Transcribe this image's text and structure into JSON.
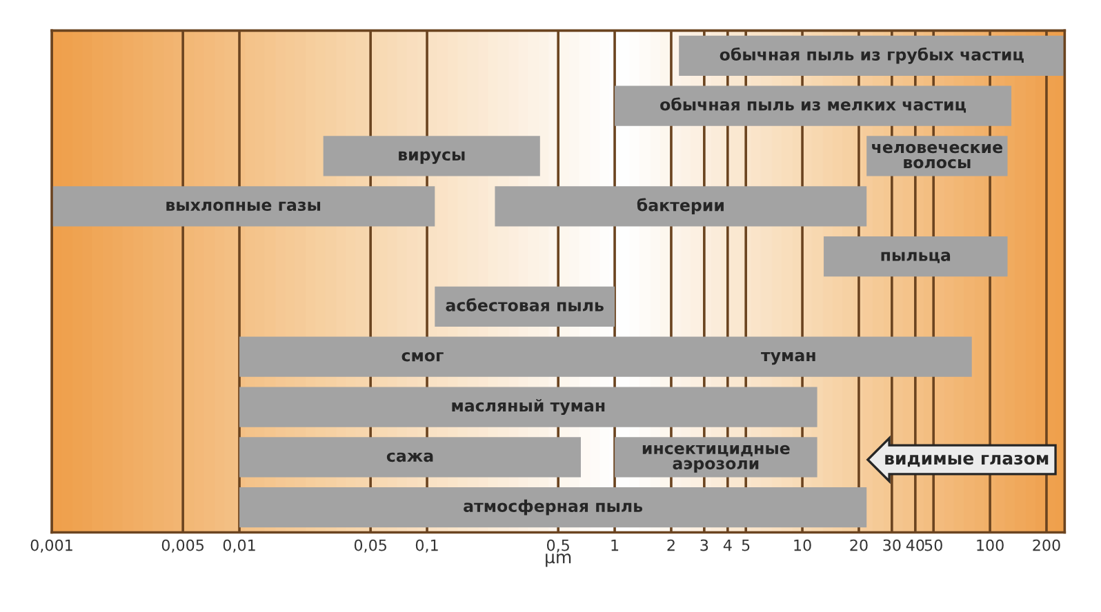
{
  "chart_data": {
    "type": "bar",
    "orientation": "horizontal",
    "xlabel": "μm",
    "log": "x",
    "grid": "x",
    "tick_labels": "x",
    "categories": [
      null,
      null,
      null,
      null,
      null,
      null,
      null,
      null,
      null,
      null
    ],
    "xlim": [
      0.001,
      250
    ],
    "xticks": [
      {
        "value": 0.001,
        "label": "0,001"
      },
      {
        "value": 0.005,
        "label": "0,005"
      },
      {
        "value": 0.01,
        "label": "0,01"
      },
      {
        "value": 0.05,
        "label": "0,05"
      },
      {
        "value": 0.1,
        "label": "0,1"
      },
      {
        "value": 0.5,
        "label": "0,5"
      },
      1,
      2,
      3,
      4,
      5,
      10,
      20,
      30,
      40,
      50,
      100,
      200
    ],
    "series": [
      {
        "color": "#a3a3a3",
        "base": [
          2.2,
          1,
          0.028,
          0.001,
          13,
          0.11,
          0.01,
          0.01,
          0.01,
          0.01
        ],
        "values": [
          247.8,
          129,
          0.372,
          0.109,
          111,
          0.89,
          79.99,
          11.99,
          0.65,
          21.99
        ],
        "value_labels": [
          "обычная пыль из грубых частиц",
          "обычная пыль из мелких частиц",
          "вирусы",
          "выхлопные газы",
          "пыльца",
          "асбестовая пыль",
          [
            "смог",
            "туман"
          ],
          "масляный туман",
          "сажа",
          "атмосферная пыль"
        ]
      },
      {
        "color": "#a3a3a3",
        "base": [
          null,
          null,
          22,
          0.23,
          null,
          null,
          null,
          null,
          1,
          null
        ],
        "values": [
          null,
          null,
          102,
          21.77,
          null,
          null,
          null,
          null,
          11,
          null
        ],
        "value_labels": [
          null,
          null,
          "человеческие\nволосы",
          "бактерии",
          null,
          null,
          null,
          null,
          "инсектицидные\nаэрозоли",
          null
        ]
      }
    ],
    "annotations": [
      "видимые глазом"
    ]
  }
}
